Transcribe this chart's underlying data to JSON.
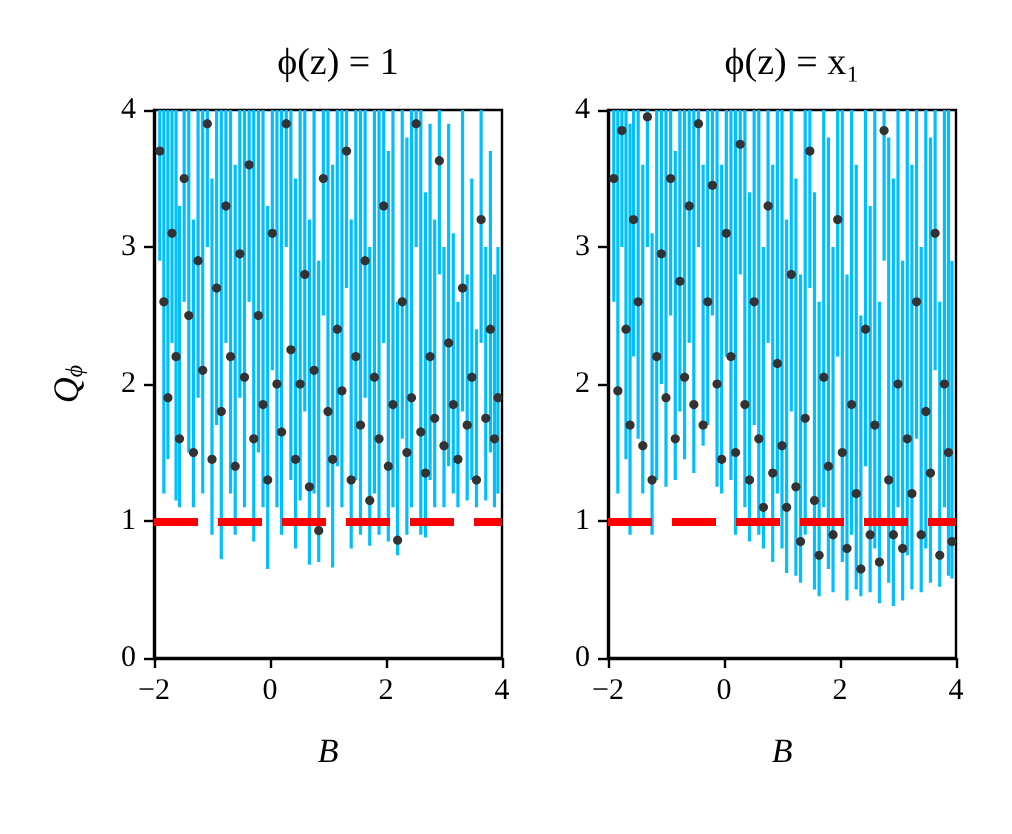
{
  "chart_data": [
    {
      "type": "scatter",
      "title": "ϕ(z) = 1",
      "xlabel": "B",
      "ylabel": "Q$_{ϕ}$",
      "color": "#333333",
      "marker": "circle",
      "xlim": [
        -2,
        4
      ],
      "ylim": [
        0,
        4
      ],
      "xticks": [
        {
          "value": -2,
          "label": "−2"
        },
        0,
        2,
        4
      ],
      "yticks": [
        0,
        1,
        2,
        3,
        4
      ],
      "ref_lines": [
        {
          "axis": "y",
          "value": 1,
          "color": "#ff0000",
          "line_style": "dashed"
        }
      ],
      "x": [
        -1.9,
        -1.83,
        -1.76,
        -1.69,
        -1.62,
        -1.56,
        -1.48,
        -1.4,
        -1.32,
        -1.24,
        -1.16,
        -1.08,
        -1.0,
        -0.92,
        -0.84,
        -0.76,
        -0.68,
        -0.6,
        -0.52,
        -0.44,
        -0.36,
        -0.28,
        -0.2,
        -0.12,
        -0.04,
        0.04,
        0.12,
        0.2,
        0.28,
        0.36,
        0.44,
        0.52,
        0.6,
        0.68,
        0.76,
        0.84,
        0.92,
        1.0,
        1.08,
        1.16,
        1.24,
        1.32,
        1.4,
        1.48,
        1.56,
        1.64,
        1.72,
        1.8,
        1.88,
        1.96,
        2.04,
        2.12,
        2.2,
        2.28,
        2.36,
        2.44,
        2.52,
        2.6,
        2.68,
        2.76,
        2.84,
        2.92,
        3.0,
        3.08,
        3.16,
        3.24,
        3.32,
        3.4,
        3.48,
        3.56,
        3.64,
        3.72,
        3.8,
        3.87,
        3.93
      ],
      "values": [
        3.7,
        2.6,
        1.9,
        3.1,
        2.2,
        1.6,
        3.5,
        2.5,
        1.5,
        2.9,
        2.1,
        3.9,
        1.45,
        2.7,
        1.8,
        3.3,
        2.2,
        1.4,
        2.95,
        2.05,
        3.6,
        1.6,
        2.5,
        1.85,
        1.3,
        3.1,
        2.0,
        1.65,
        3.9,
        2.25,
        1.45,
        2.0,
        2.8,
        1.25,
        2.1,
        0.93,
        3.5,
        1.8,
        1.45,
        2.4,
        1.95,
        3.7,
        1.3,
        2.2,
        1.7,
        2.9,
        1.15,
        2.05,
        1.6,
        3.3,
        1.4,
        1.85,
        0.86,
        2.6,
        1.5,
        1.9,
        3.9,
        1.65,
        1.35,
        2.2,
        1.75,
        3.63,
        1.55,
        2.3,
        1.85,
        1.45,
        2.7,
        1.7,
        2.05,
        1.3,
        3.2,
        1.75,
        2.4,
        1.6,
        1.9
      ],
      "errors": [
        [
          2.9,
          4
        ],
        [
          1.2,
          4
        ],
        [
          1.45,
          4
        ],
        [
          2.3,
          4
        ],
        [
          1.15,
          4
        ],
        [
          1.1,
          3.3
        ],
        [
          2.6,
          4
        ],
        [
          1.5,
          4
        ],
        [
          1.1,
          3.2
        ],
        [
          1.9,
          4
        ],
        [
          1.2,
          4
        ],
        [
          3.0,
          4
        ],
        [
          0.9,
          3.5
        ],
        [
          1.7,
          4
        ],
        [
          0.72,
          4
        ],
        [
          2.3,
          4
        ],
        [
          1.2,
          4
        ],
        [
          0.9,
          3.6
        ],
        [
          1.9,
          4
        ],
        [
          1.1,
          4
        ],
        [
          2.6,
          4
        ],
        [
          0.85,
          4
        ],
        [
          1.5,
          4
        ],
        [
          1.1,
          4
        ],
        [
          0.65,
          3.3
        ],
        [
          2.1,
          4
        ],
        [
          1.1,
          4
        ],
        [
          0.9,
          4
        ],
        [
          3.0,
          4
        ],
        [
          1.3,
          4
        ],
        [
          0.8,
          3.5
        ],
        [
          1.15,
          4
        ],
        [
          1.8,
          4
        ],
        [
          0.68,
          3.2
        ],
        [
          1.2,
          4
        ],
        [
          0.7,
          2.9
        ],
        [
          2.5,
          4
        ],
        [
          1.1,
          4
        ],
        [
          0.66,
          3.6
        ],
        [
          1.4,
          4
        ],
        [
          1.1,
          4
        ],
        [
          2.7,
          4
        ],
        [
          0.8,
          3.2
        ],
        [
          1.3,
          4
        ],
        [
          0.9,
          4
        ],
        [
          1.9,
          4
        ],
        [
          0.82,
          3.0
        ],
        [
          1.2,
          4
        ],
        [
          0.9,
          4
        ],
        [
          2.3,
          4
        ],
        [
          0.85,
          3.7
        ],
        [
          1.1,
          4
        ],
        [
          0.75,
          2.6
        ],
        [
          1.6,
          4
        ],
        [
          0.9,
          3.8
        ],
        [
          1.1,
          4
        ],
        [
          3.0,
          4
        ],
        [
          0.9,
          4
        ],
        [
          0.88,
          3.4
        ],
        [
          1.3,
          3.9
        ],
        [
          1.1,
          3.2
        ],
        [
          2.8,
          4
        ],
        [
          1.1,
          3.0
        ],
        [
          1.4,
          3.9
        ],
        [
          1.2,
          3.1
        ],
        [
          1.1,
          2.6
        ],
        [
          1.8,
          4
        ],
        [
          1.15,
          2.8
        ],
        [
          1.3,
          3.5
        ],
        [
          1.1,
          2.4
        ],
        [
          2.3,
          4
        ],
        [
          1.15,
          3.0
        ],
        [
          1.5,
          3.7
        ],
        [
          1.1,
          2.8
        ],
        [
          1.2,
          3.0
        ]
      ]
    },
    {
      "type": "scatter",
      "title": "ϕ(z) = x₁",
      "xlabel": "B",
      "color": "#333333",
      "marker": "circle",
      "xlim": [
        -2,
        4
      ],
      "ylim": [
        0,
        4
      ],
      "xticks": [
        {
          "value": -2,
          "label": "−2"
        },
        0,
        2,
        4
      ],
      "yticks": [
        0,
        1,
        2,
        3,
        4
      ],
      "ref_lines": [
        {
          "axis": "y",
          "value": 1,
          "color": "#ff0000",
          "line_style": "dashed"
        }
      ],
      "x": [
        -1.9,
        -1.83,
        -1.76,
        -1.69,
        -1.62,
        -1.56,
        -1.48,
        -1.4,
        -1.32,
        -1.24,
        -1.16,
        -1.08,
        -1.0,
        -0.92,
        -0.84,
        -0.76,
        -0.68,
        -0.6,
        -0.52,
        -0.44,
        -0.36,
        -0.28,
        -0.2,
        -0.12,
        -0.04,
        0.04,
        0.12,
        0.2,
        0.28,
        0.36,
        0.44,
        0.52,
        0.6,
        0.68,
        0.76,
        0.84,
        0.92,
        1.0,
        1.08,
        1.16,
        1.24,
        1.32,
        1.4,
        1.48,
        1.56,
        1.64,
        1.72,
        1.8,
        1.88,
        1.96,
        2.04,
        2.12,
        2.2,
        2.28,
        2.36,
        2.44,
        2.52,
        2.6,
        2.68,
        2.76,
        2.84,
        2.92,
        3.0,
        3.08,
        3.16,
        3.24,
        3.32,
        3.4,
        3.48,
        3.56,
        3.64,
        3.72,
        3.8,
        3.87,
        3.93
      ],
      "values": [
        3.5,
        1.95,
        3.85,
        2.4,
        1.7,
        3.2,
        2.6,
        1.55,
        3.95,
        1.3,
        2.2,
        2.95,
        1.9,
        3.5,
        1.6,
        2.75,
        2.05,
        3.3,
        1.85,
        3.9,
        1.7,
        2.6,
        3.45,
        2.0,
        1.45,
        3.1,
        2.2,
        1.5,
        3.75,
        1.85,
        1.3,
        2.6,
        1.6,
        1.1,
        3.3,
        1.35,
        2.15,
        1.55,
        1.1,
        2.8,
        1.25,
        0.85,
        1.75,
        3.7,
        1.15,
        0.75,
        2.05,
        1.4,
        0.9,
        3.2,
        1.5,
        0.8,
        1.85,
        1.2,
        0.65,
        2.4,
        0.9,
        1.7,
        0.7,
        3.85,
        1.3,
        0.9,
        2.0,
        0.8,
        1.6,
        1.2,
        2.6,
        0.9,
        1.8,
        1.35,
        3.1,
        0.75,
        2.0,
        1.5,
        0.85
      ],
      "errors": [
        [
          2.6,
          4
        ],
        [
          1.2,
          4
        ],
        [
          3.0,
          4
        ],
        [
          1.45,
          4
        ],
        [
          0.9,
          3.9
        ],
        [
          2.2,
          4
        ],
        [
          1.6,
          4
        ],
        [
          1.2,
          3.6
        ],
        [
          3.0,
          4
        ],
        [
          0.9,
          3.1
        ],
        [
          1.3,
          4
        ],
        [
          2.0,
          4
        ],
        [
          1.25,
          4
        ],
        [
          2.5,
          4
        ],
        [
          1.3,
          3.7
        ],
        [
          1.8,
          4
        ],
        [
          1.45,
          4
        ],
        [
          2.3,
          4
        ],
        [
          1.35,
          4
        ],
        [
          3.0,
          4
        ],
        [
          1.55,
          3.6
        ],
        [
          1.7,
          4
        ],
        [
          2.5,
          4
        ],
        [
          1.25,
          4
        ],
        [
          1.2,
          3.6
        ],
        [
          2.2,
          4
        ],
        [
          1.3,
          4
        ],
        [
          0.9,
          4
        ],
        [
          2.8,
          4
        ],
        [
          1.1,
          4
        ],
        [
          0.85,
          3.4
        ],
        [
          1.7,
          4
        ],
        [
          0.9,
          4
        ],
        [
          0.8,
          3.0
        ],
        [
          2.3,
          4
        ],
        [
          0.7,
          3.6
        ],
        [
          1.2,
          4
        ],
        [
          0.8,
          4
        ],
        [
          0.62,
          3.2
        ],
        [
          1.8,
          4
        ],
        [
          0.6,
          3.5
        ],
        [
          0.55,
          2.8
        ],
        [
          0.9,
          4
        ],
        [
          2.7,
          4
        ],
        [
          0.5,
          3.4
        ],
        [
          0.45,
          2.6
        ],
        [
          1.1,
          4
        ],
        [
          0.65,
          3.8
        ],
        [
          0.48,
          3.0
        ],
        [
          2.2,
          4
        ],
        [
          0.7,
          4
        ],
        [
          0.42,
          2.8
        ],
        [
          0.9,
          4
        ],
        [
          0.5,
          3.6
        ],
        [
          0.45,
          2.5
        ],
        [
          1.4,
          4
        ],
        [
          0.48,
          3.3
        ],
        [
          0.8,
          4
        ],
        [
          0.4,
          2.6
        ],
        [
          2.9,
          4
        ],
        [
          0.55,
          3.8
        ],
        [
          0.38,
          3.5
        ],
        [
          1.1,
          4
        ],
        [
          0.42,
          2.9
        ],
        [
          0.75,
          4
        ],
        [
          0.5,
          3.6
        ],
        [
          1.6,
          4
        ],
        [
          0.48,
          3.0
        ],
        [
          0.8,
          4
        ],
        [
          0.55,
          3.8
        ],
        [
          2.1,
          4
        ],
        [
          0.52,
          2.6
        ],
        [
          1.1,
          4
        ],
        [
          0.6,
          4
        ],
        [
          0.58,
          2.9
        ]
      ]
    }
  ]
}
